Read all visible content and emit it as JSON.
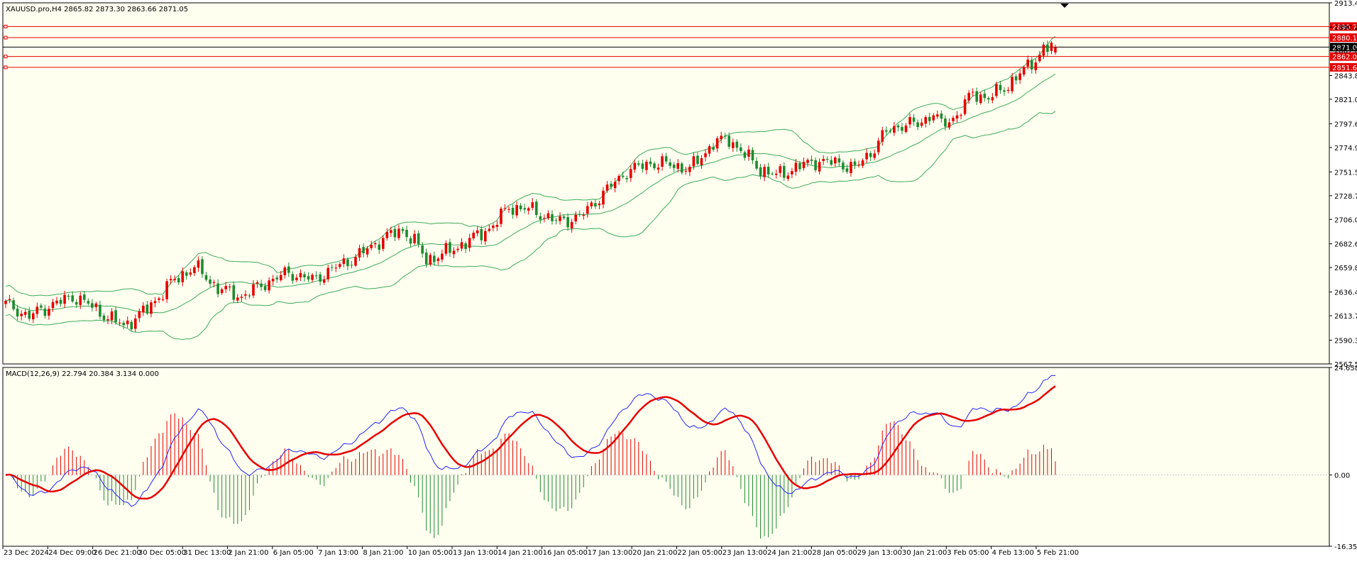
{
  "colors": {
    "background": "#fffff0",
    "axis": "#000000",
    "bull_candle": "#e60000",
    "bear_candle": "#1d8b2f",
    "bollinger": "#3dab5c",
    "macd_line": "#2424ff",
    "signal_line": "#e60000",
    "hist_positive": "#e60000",
    "hist_negative": "#1d8b2f",
    "level_line": "#e60000",
    "current_price_line": "#000000"
  },
  "chart_data": [
    {
      "type": "candlestick",
      "title": "XAUUSD.pro,H4  2865.82 2873.30 2863.66 2871.05",
      "symbol": "XAUUSD.pro",
      "timeframe": "H4",
      "ohlc_last": {
        "open": 2865.82,
        "high": 2873.3,
        "low": 2863.66,
        "close": 2871.05
      },
      "y_ticks": [
        "2913.45",
        "2890.20",
        "2867.80",
        "2843.80",
        "2821.05",
        "2797.65",
        "2774.90",
        "2751.50",
        "2728.75",
        "2706.00",
        "2682.60",
        "2659.85",
        "2636.45",
        "2613.70",
        "2590.30",
        "2567.55"
      ],
      "ylim": [
        2567.55,
        2913.45
      ],
      "price_levels": [
        {
          "label": "2890.73",
          "value": 2890.73,
          "kind": "level"
        },
        {
          "label": "2880.11",
          "value": 2880.11,
          "kind": "level"
        },
        {
          "label": "2871.05",
          "value": 2871.05,
          "kind": "current"
        },
        {
          "label": "2862.02",
          "value": 2862.02,
          "kind": "level"
        },
        {
          "label": "2851.67",
          "value": 2851.67,
          "kind": "level"
        }
      ],
      "x_ticks": [
        "23 Dec 2024",
        "24 Dec 09:00",
        "26 Dec 21:00",
        "30 Dec 05:00",
        "31 Dec 13:00",
        "2 Jan 21:00",
        "6 Jan 05:00",
        "7 Jan 13:00",
        "8 Jan 21:00",
        "10 Jan 05:00",
        "13 Jan 13:00",
        "14 Jan 21:00",
        "16 Jan 05:00",
        "17 Jan 13:00",
        "20 Jan 21:00",
        "22 Jan 05:00",
        "23 Jan 13:00",
        "24 Jan 21:00",
        "28 Jan 05:00",
        "29 Jan 13:00",
        "30 Jan 21:00",
        "3 Feb 05:00",
        "4 Feb 13:00",
        "5 Feb 21:00"
      ],
      "close_anchors": [
        [
          0,
          2625
        ],
        [
          6,
          2613
        ],
        [
          12,
          2625
        ],
        [
          18,
          2632
        ],
        [
          24,
          2617
        ],
        [
          30,
          2604
        ],
        [
          36,
          2620
        ],
        [
          42,
          2645
        ],
        [
          48,
          2661
        ],
        [
          54,
          2640
        ],
        [
          60,
          2632
        ],
        [
          66,
          2645
        ],
        [
          72,
          2655
        ],
        [
          78,
          2648
        ],
        [
          84,
          2660
        ],
        [
          90,
          2672
        ],
        [
          96,
          2688
        ],
        [
          101,
          2696
        ],
        [
          104,
          2685
        ],
        [
          107,
          2667
        ],
        [
          112,
          2674
        ],
        [
          118,
          2686
        ],
        [
          124,
          2700
        ],
        [
          128,
          2718
        ],
        [
          134,
          2715
        ],
        [
          140,
          2704
        ],
        [
          146,
          2708
        ],
        [
          152,
          2731
        ],
        [
          158,
          2752
        ],
        [
          164,
          2760
        ],
        [
          170,
          2758
        ],
        [
          174,
          2754
        ],
        [
          180,
          2779
        ],
        [
          184,
          2783
        ],
        [
          188,
          2768
        ],
        [
          192,
          2754
        ],
        [
          196,
          2748
        ],
        [
          202,
          2757
        ],
        [
          206,
          2762
        ],
        [
          212,
          2760
        ],
        [
          216,
          2755
        ],
        [
          220,
          2770
        ],
        [
          224,
          2790
        ],
        [
          228,
          2797
        ],
        [
          232,
          2797
        ],
        [
          236,
          2808
        ],
        [
          238,
          2796
        ],
        [
          242,
          2806
        ],
        [
          246,
          2827
        ],
        [
          250,
          2822
        ],
        [
          254,
          2832
        ],
        [
          258,
          2845
        ],
        [
          262,
          2860
        ],
        [
          264,
          2869
        ],
        [
          266,
          2871
        ]
      ],
      "bollinger_period": 20,
      "bollinger_deviations": 2
    },
    {
      "type": "line",
      "title": "MACD(12,26,9) 22.794 20.384 3.134 0.000",
      "indicator": "MACD(12,26,9)",
      "values_last": {
        "macd": 22.794,
        "signal": 20.384,
        "histogram": 3.134,
        "level": 0.0
      },
      "y_ticks": [
        "24.658",
        "0.00",
        "-16.35"
      ],
      "ylim": [
        -16.35,
        24.658
      ],
      "series": [
        {
          "name": "MACD",
          "color": "#2424ff"
        },
        {
          "name": "Signal",
          "color": "#e60000"
        },
        {
          "name": "Histogram",
          "type": "bar"
        }
      ]
    }
  ]
}
